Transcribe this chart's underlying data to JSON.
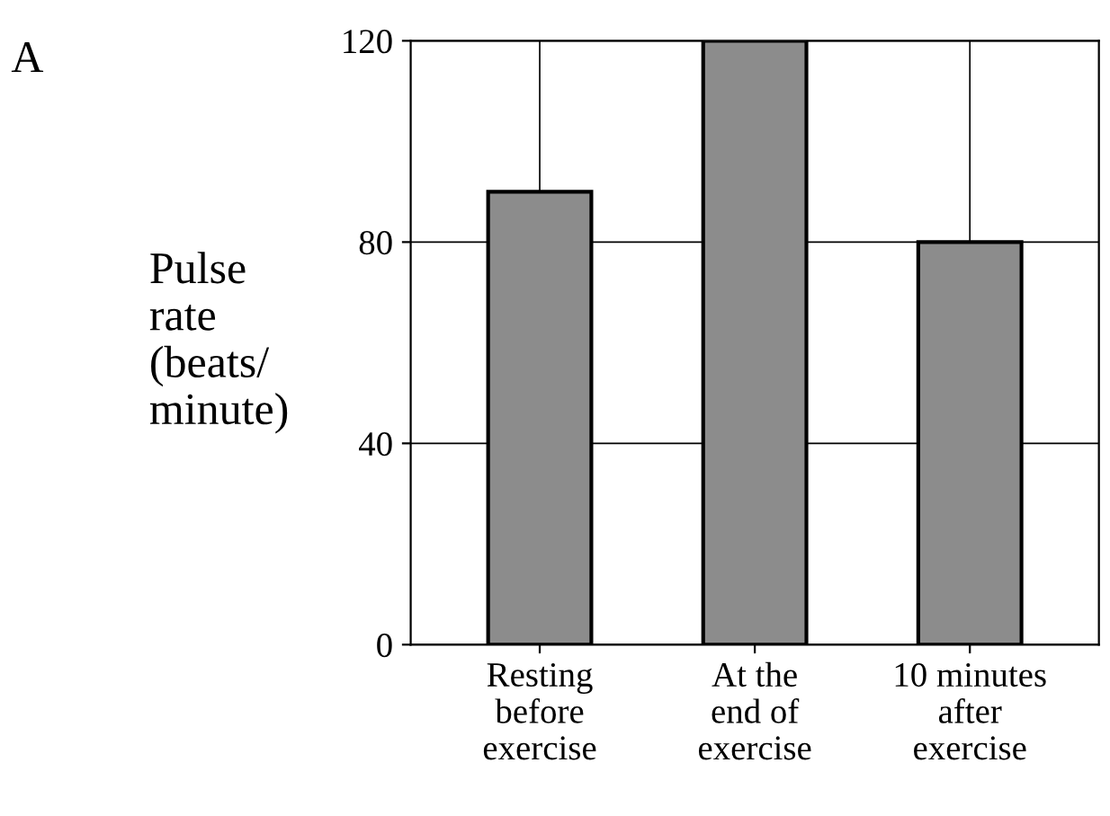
{
  "chart_data": {
    "type": "bar",
    "title": "A",
    "ylabel": "Pulse\nrate\n(beats/\nminute)",
    "categories": [
      "Resting\nbefore\nexercise",
      "At the\nend of\nexercise",
      "10 minutes\nafter\nexercise"
    ],
    "values": [
      90,
      120,
      80
    ],
    "color": "#8c8c8c",
    "ylim": [
      0,
      120
    ],
    "yticks": [
      0,
      40,
      80,
      120
    ],
    "grid": true
  }
}
